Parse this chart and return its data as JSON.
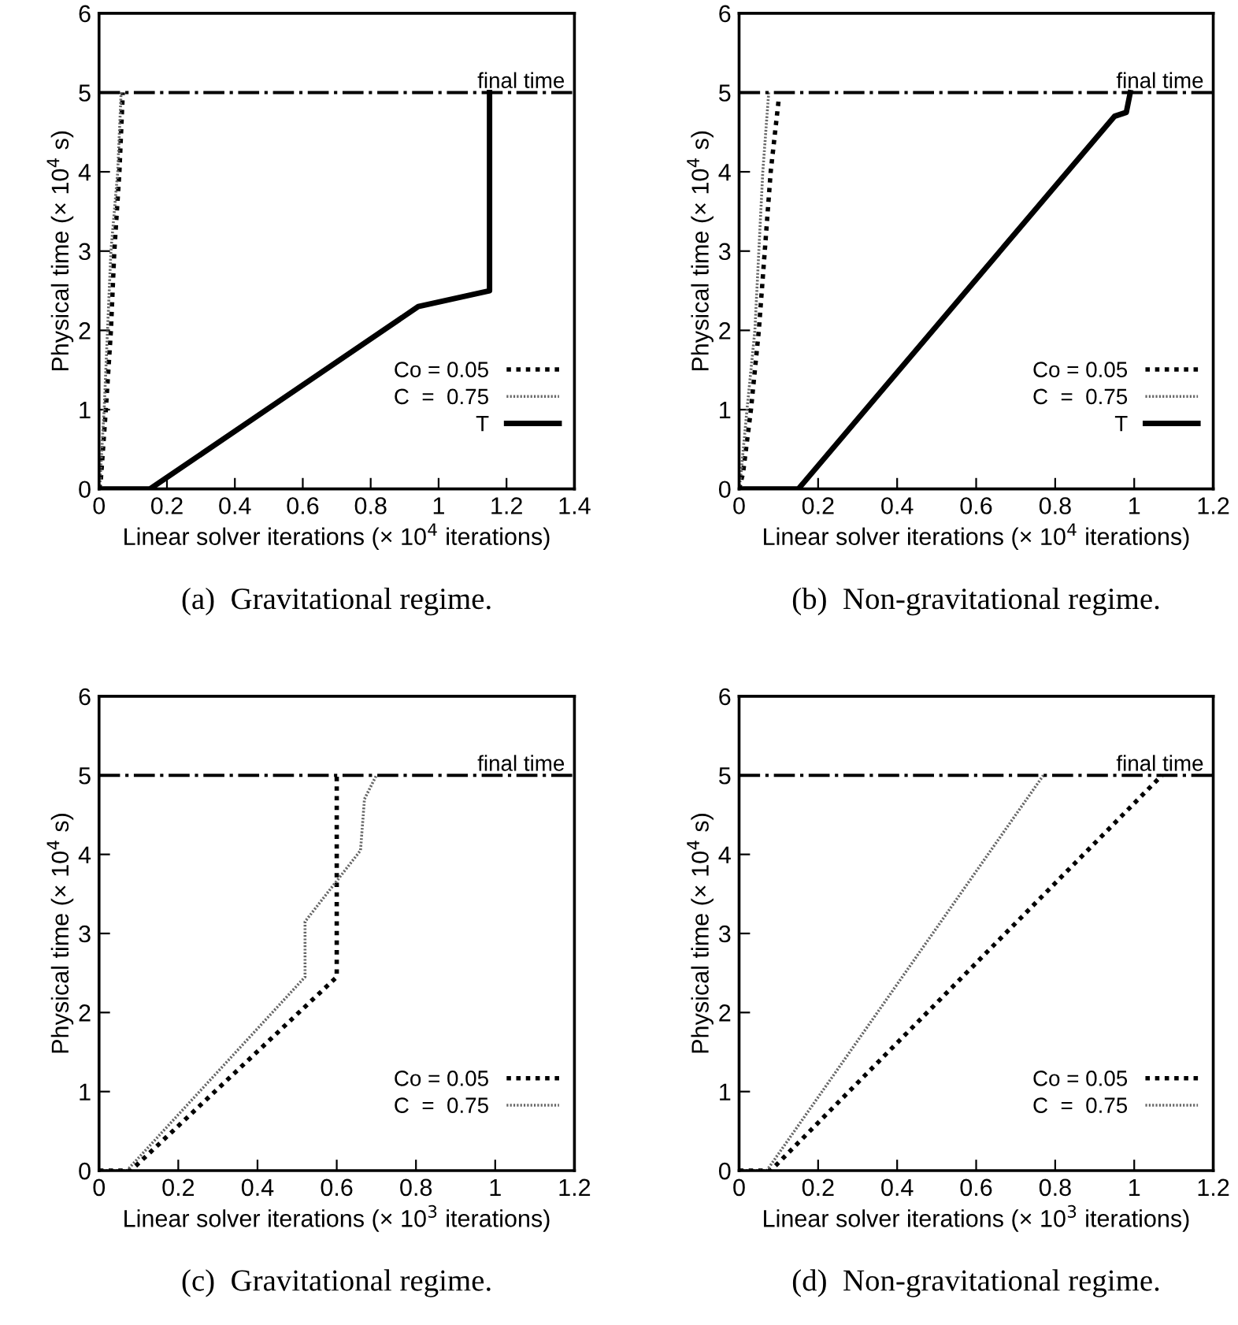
{
  "chart_data": [
    {
      "type": "line",
      "xlabel": "Linear solver iterations (× 10$^{4}$ iterations)",
      "ylabel": "Physical time (× 10$^{4}$ s)",
      "annotations": [
        "(a)  Gravitational regime."
      ],
      "xlim": [
        0,
        1.4
      ],
      "ylim": [
        0,
        6
      ],
      "xticks": [
        0,
        0.2,
        0.4,
        0.6,
        0.8,
        1,
        1.2,
        1.4
      ],
      "yticks": [
        0,
        1,
        2,
        3,
        4,
        5,
        6
      ],
      "grid": false,
      "legend": "bottom right",
      "marker": "none",
      "ref_lines": [
        {
          "axis": "y",
          "value": 5,
          "label": "final time",
          "color": "#000000"
        }
      ],
      "series": [
        {
          "name": "Co = 0.05",
          "color": "#000000",
          "line_style": "dotted",
          "x": [
            0,
            0.005,
            0.02,
            0.035,
            0.045,
            0.06,
            0.07
          ],
          "values": [
            0,
            0.1,
            1,
            2,
            3,
            4,
            5
          ]
        },
        {
          "name": "C  =  0.75",
          "color": "#666666",
          "line_style": "dotted",
          "x": [
            0,
            0.003,
            0.015,
            0.025,
            0.035,
            0.055,
            0.065
          ],
          "values": [
            0,
            0.1,
            1,
            2,
            3,
            4,
            5
          ]
        },
        {
          "name": "T",
          "color": "#000000",
          "line_style": "solid",
          "x": [
            0,
            0.15,
            0.94,
            1.15,
            1.15
          ],
          "values": [
            0,
            0,
            2.3,
            2.5,
            5
          ]
        }
      ]
    },
    {
      "type": "line",
      "xlabel": "Linear solver iterations (× 10$^{4}$ iterations)",
      "ylabel": "Physical time (× 10$^{4}$ s)",
      "annotations": [
        "(b)  Non-gravitational regime."
      ],
      "xlim": [
        0,
        1.2
      ],
      "ylim": [
        0,
        6
      ],
      "xticks": [
        0,
        0.2,
        0.4,
        0.6,
        0.8,
        1,
        1.2
      ],
      "yticks": [
        0,
        1,
        2,
        3,
        4,
        5,
        6
      ],
      "grid": false,
      "legend": "bottom right",
      "marker": "none",
      "ref_lines": [
        {
          "axis": "y",
          "value": 5,
          "label": "final time",
          "color": "#000000"
        }
      ],
      "series": [
        {
          "name": "Co = 0.05",
          "color": "#000000",
          "line_style": "dotted",
          "x": [
            0,
            0.01,
            0.03,
            0.05,
            0.08,
            0.1
          ],
          "values": [
            0,
            0.2,
            1,
            2,
            4,
            4.9
          ]
        },
        {
          "name": "C  =  0.75",
          "color": "#666666",
          "line_style": "dotted",
          "x": [
            0,
            0.005,
            0.02,
            0.04,
            0.06,
            0.075
          ],
          "values": [
            0,
            0.2,
            1,
            2,
            4,
            5
          ]
        },
        {
          "name": "T",
          "color": "#000000",
          "line_style": "solid",
          "x": [
            0,
            0.15,
            0.95,
            0.98,
            0.99
          ],
          "values": [
            0,
            0,
            4.7,
            4.75,
            5
          ]
        }
      ]
    },
    {
      "type": "line",
      "xlabel": "Linear solver iterations (× 10$^{3}$ iterations)",
      "ylabel": "Physical time (× 10$^{4}$ s)",
      "annotations": [
        "(c)  Gravitational regime."
      ],
      "xlim": [
        0,
        1.2
      ],
      "ylim": [
        0,
        6
      ],
      "xticks": [
        0,
        0.2,
        0.4,
        0.6,
        0.8,
        1,
        1.2
      ],
      "yticks": [
        0,
        1,
        2,
        3,
        4,
        5,
        6
      ],
      "grid": false,
      "legend": "bottom right",
      "marker": "none",
      "ref_lines": [
        {
          "axis": "y",
          "value": 5,
          "label": "final time",
          "color": "#000000"
        }
      ],
      "series": [
        {
          "name": "Co = 0.05",
          "color": "#000000",
          "line_style": "dotted",
          "x": [
            0,
            0.08,
            0.6,
            0.6
          ],
          "values": [
            0,
            0,
            2.45,
            5
          ]
        },
        {
          "name": "C  =  0.75",
          "color": "#666666",
          "line_style": "dotted",
          "x": [
            0,
            0.07,
            0.52,
            0.52,
            0.66,
            0.67,
            0.7
          ],
          "values": [
            0,
            0,
            2.45,
            3.15,
            4.05,
            4.7,
            5
          ]
        }
      ]
    },
    {
      "type": "line",
      "xlabel": "Linear solver iterations (× 10$^{3}$ iterations)",
      "ylabel": "Physical time (× 10$^{4}$ s)",
      "annotations": [
        "(d)  Non-gravitational regime."
      ],
      "xlim": [
        0,
        1.2
      ],
      "ylim": [
        0,
        6
      ],
      "xticks": [
        0,
        0.2,
        0.4,
        0.6,
        0.8,
        1,
        1.2
      ],
      "yticks": [
        0,
        1,
        2,
        3,
        4,
        5,
        6
      ],
      "grid": false,
      "legend": "bottom right",
      "marker": "none",
      "ref_lines": [
        {
          "axis": "y",
          "value": 5,
          "label": "final time",
          "color": "#000000"
        }
      ],
      "series": [
        {
          "name": "Co = 0.05",
          "color": "#000000",
          "line_style": "dotted",
          "x": [
            0,
            0.08,
            1.07
          ],
          "values": [
            0,
            0,
            5
          ]
        },
        {
          "name": "C  =  0.75",
          "color": "#666666",
          "line_style": "dotted",
          "x": [
            0,
            0.07,
            0.77
          ],
          "values": [
            0,
            0,
            5
          ]
        }
      ]
    }
  ]
}
